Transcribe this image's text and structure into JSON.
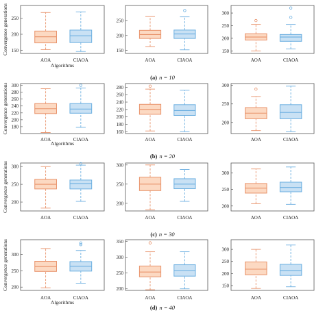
{
  "figure": {
    "ylabel": "Convergence generations",
    "xlabel": "Algorithms",
    "colors": {
      "aoa_fill": "#fcd9c2",
      "aoa_stroke": "#e8926a",
      "ciaoa_fill": "#c9e1f4",
      "ciaoa_stroke": "#6aaee0",
      "frame": "#555555"
    },
    "rows": [
      {
        "caption_letter": "(a)",
        "caption_text": "n = 10"
      },
      {
        "caption_letter": "(b)",
        "caption_text": "n = 20"
      },
      {
        "caption_letter": "(c)",
        "caption_text": "n = 30"
      },
      {
        "caption_letter": "(d)",
        "caption_text": "n = 40"
      }
    ]
  },
  "chart_data": [
    {
      "type": "box",
      "row": 0,
      "col": 0,
      "ylabel": "Convergence generations",
      "xlabel": "Algorithms",
      "ylim": [
        140,
        290
      ],
      "yticks": [
        150,
        200,
        250
      ],
      "categories": [
        "AOA",
        "CIAOA"
      ],
      "boxes": [
        {
          "name": "AOA",
          "whisker_low": 152,
          "q1": 173,
          "median": 192,
          "q3": 210,
          "whisker_high": 268,
          "outliers": []
        },
        {
          "name": "CIAOA",
          "whisker_low": 146,
          "q1": 174,
          "median": 195,
          "q3": 213,
          "whisker_high": 270,
          "outliers": []
        }
      ]
    },
    {
      "type": "box",
      "row": 0,
      "col": 1,
      "ylabel": "",
      "xlabel": "",
      "ylim": [
        140,
        300
      ],
      "yticks": [
        150,
        200,
        250
      ],
      "categories": [
        "AOA",
        "CIAOA"
      ],
      "boxes": [
        {
          "name": "AOA",
          "whisker_low": 163,
          "q1": 190,
          "median": 203,
          "q3": 217,
          "whisker_high": 263,
          "outliers": []
        },
        {
          "name": "CIAOA",
          "whisker_low": 152,
          "q1": 190,
          "median": 205,
          "q3": 218,
          "whisker_high": 262,
          "outliers": [
            283
          ]
        }
      ]
    },
    {
      "type": "box",
      "row": 0,
      "col": 2,
      "ylabel": "",
      "xlabel": "",
      "ylim": [
        140,
        330
      ],
      "yticks": [
        150,
        200,
        250,
        300
      ],
      "categories": [
        "AOA",
        "CIAOA"
      ],
      "boxes": [
        {
          "name": "AOA",
          "whisker_low": 150,
          "q1": 193,
          "median": 205,
          "q3": 218,
          "whisker_high": 255,
          "outliers": [
            270
          ]
        },
        {
          "name": "CIAOA",
          "whisker_low": 158,
          "q1": 188,
          "median": 205,
          "q3": 215,
          "whisker_high": 255,
          "outliers": [
            283,
            320
          ]
        }
      ]
    },
    {
      "type": "box",
      "row": 1,
      "col": 0,
      "ylabel": "Convergence generations",
      "xlabel": "Algorithms",
      "ylim": [
        160,
        305
      ],
      "yticks": [
        180,
        200,
        220,
        240,
        260,
        280,
        300
      ],
      "categories": [
        "AOA",
        "CIAOA"
      ],
      "boxes": [
        {
          "name": "AOA",
          "whisker_low": 163,
          "q1": 218,
          "median": 232,
          "q3": 247,
          "whisker_high": 290,
          "outliers": []
        },
        {
          "name": "CIAOA",
          "whisker_low": 178,
          "q1": 219,
          "median": 231,
          "q3": 247,
          "whisker_high": 292,
          "outliers": [
            300
          ]
        }
      ]
    },
    {
      "type": "box",
      "row": 1,
      "col": 1,
      "ylabel": "",
      "xlabel": "",
      "ylim": [
        155,
        290
      ],
      "yticks": [
        160,
        180,
        200,
        220,
        240,
        260,
        280
      ],
      "categories": [
        "AOA",
        "CIAOA"
      ],
      "boxes": [
        {
          "name": "AOA",
          "whisker_low": 162,
          "q1": 207,
          "median": 220,
          "q3": 234,
          "whisker_high": 275,
          "outliers": [
            283
          ]
        },
        {
          "name": "CIAOA",
          "whisker_low": 160,
          "q1": 204,
          "median": 217,
          "q3": 233,
          "whisker_high": 272,
          "outliers": []
        }
      ]
    },
    {
      "type": "box",
      "row": 1,
      "col": 2,
      "ylabel": "",
      "xlabel": "",
      "ylim": [
        170,
        305
      ],
      "yticks": [
        200,
        250,
        300
      ],
      "categories": [
        "AOA",
        "CIAOA"
      ],
      "boxes": [
        {
          "name": "AOA",
          "whisker_low": 178,
          "q1": 210,
          "median": 225,
          "q3": 240,
          "whisker_high": 270,
          "outliers": [
            290
          ]
        },
        {
          "name": "CIAOA",
          "whisker_low": 175,
          "q1": 210,
          "median": 227,
          "q3": 248,
          "whisker_high": 298,
          "outliers": []
        }
      ]
    },
    {
      "type": "box",
      "row": 2,
      "col": 0,
      "ylabel": "Convergence generations",
      "xlabel": "",
      "ylim": [
        175,
        310
      ],
      "yticks": [
        200,
        250,
        300
      ],
      "categories": [
        "AOA",
        "CIAOA"
      ],
      "boxes": [
        {
          "name": "AOA",
          "whisker_low": 183,
          "q1": 237,
          "median": 250,
          "q3": 264,
          "whisker_high": 300,
          "outliers": []
        },
        {
          "name": "CIAOA",
          "whisker_low": 202,
          "q1": 237,
          "median": 252,
          "q3": 262,
          "whisker_high": 304,
          "outliers": [
            308
          ]
        }
      ]
    },
    {
      "type": "box",
      "row": 2,
      "col": 1,
      "ylabel": "",
      "xlabel": "",
      "ylim": [
        180,
        305
      ],
      "yticks": [
        200,
        250,
        300
      ],
      "categories": [
        "AOA",
        "CIAOA"
      ],
      "boxes": [
        {
          "name": "AOA",
          "whisker_low": 183,
          "q1": 233,
          "median": 250,
          "q3": 268,
          "whisker_high": 300,
          "outliers": []
        },
        {
          "name": "CIAOA",
          "whisker_low": 205,
          "q1": 238,
          "median": 250,
          "q3": 264,
          "whisker_high": 288,
          "outliers": []
        }
      ]
    },
    {
      "type": "box",
      "row": 2,
      "col": 2,
      "ylabel": "",
      "xlabel": "",
      "ylim": [
        185,
        330
      ],
      "yticks": [
        200,
        250,
        300
      ],
      "categories": [
        "AOA",
        "CIAOA"
      ],
      "boxes": [
        {
          "name": "AOA",
          "whisker_low": 207,
          "q1": 239,
          "median": 254,
          "q3": 268,
          "whisker_high": 312,
          "outliers": []
        },
        {
          "name": "CIAOA",
          "whisker_low": 205,
          "q1": 243,
          "median": 256,
          "q3": 272,
          "whisker_high": 318,
          "outliers": []
        }
      ]
    },
    {
      "type": "box",
      "row": 3,
      "col": 0,
      "ylabel": "Convergence generations",
      "xlabel": "Algorithms",
      "ylim": [
        190,
        345
      ],
      "yticks": [
        200,
        250,
        300
      ],
      "categories": [
        "AOA",
        "CIAOA"
      ],
      "boxes": [
        {
          "name": "AOA",
          "whisker_low": 198,
          "q1": 248,
          "median": 263,
          "q3": 279,
          "whisker_high": 318,
          "outliers": []
        },
        {
          "name": "CIAOA",
          "whisker_low": 212,
          "q1": 249,
          "median": 264,
          "q3": 278,
          "whisker_high": 312,
          "outliers": [
            330,
            335
          ]
        }
      ]
    },
    {
      "type": "box",
      "row": 3,
      "col": 1,
      "ylabel": "",
      "xlabel": "",
      "ylim": [
        195,
        355
      ],
      "yticks": [
        200,
        250,
        300,
        350
      ],
      "categories": [
        "AOA",
        "CIAOA"
      ],
      "boxes": [
        {
          "name": "AOA",
          "whisker_low": 197,
          "q1": 238,
          "median": 253,
          "q3": 272,
          "whisker_high": 317,
          "outliers": [
            345
          ]
        },
        {
          "name": "CIAOA",
          "whisker_low": 200,
          "q1": 240,
          "median": 258,
          "q3": 276,
          "whisker_high": 317,
          "outliers": []
        }
      ]
    },
    {
      "type": "box",
      "row": 3,
      "col": 2,
      "ylabel": "",
      "xlabel": "",
      "ylim": [
        130,
        340
      ],
      "yticks": [
        150,
        200,
        250,
        300
      ],
      "categories": [
        "AOA",
        "CIAOA"
      ],
      "boxes": [
        {
          "name": "AOA",
          "whisker_low": 138,
          "q1": 195,
          "median": 218,
          "q3": 248,
          "whisker_high": 300,
          "outliers": []
        },
        {
          "name": "CIAOA",
          "whisker_low": 145,
          "q1": 192,
          "median": 212,
          "q3": 238,
          "whisker_high": 318,
          "outliers": []
        }
      ]
    }
  ]
}
